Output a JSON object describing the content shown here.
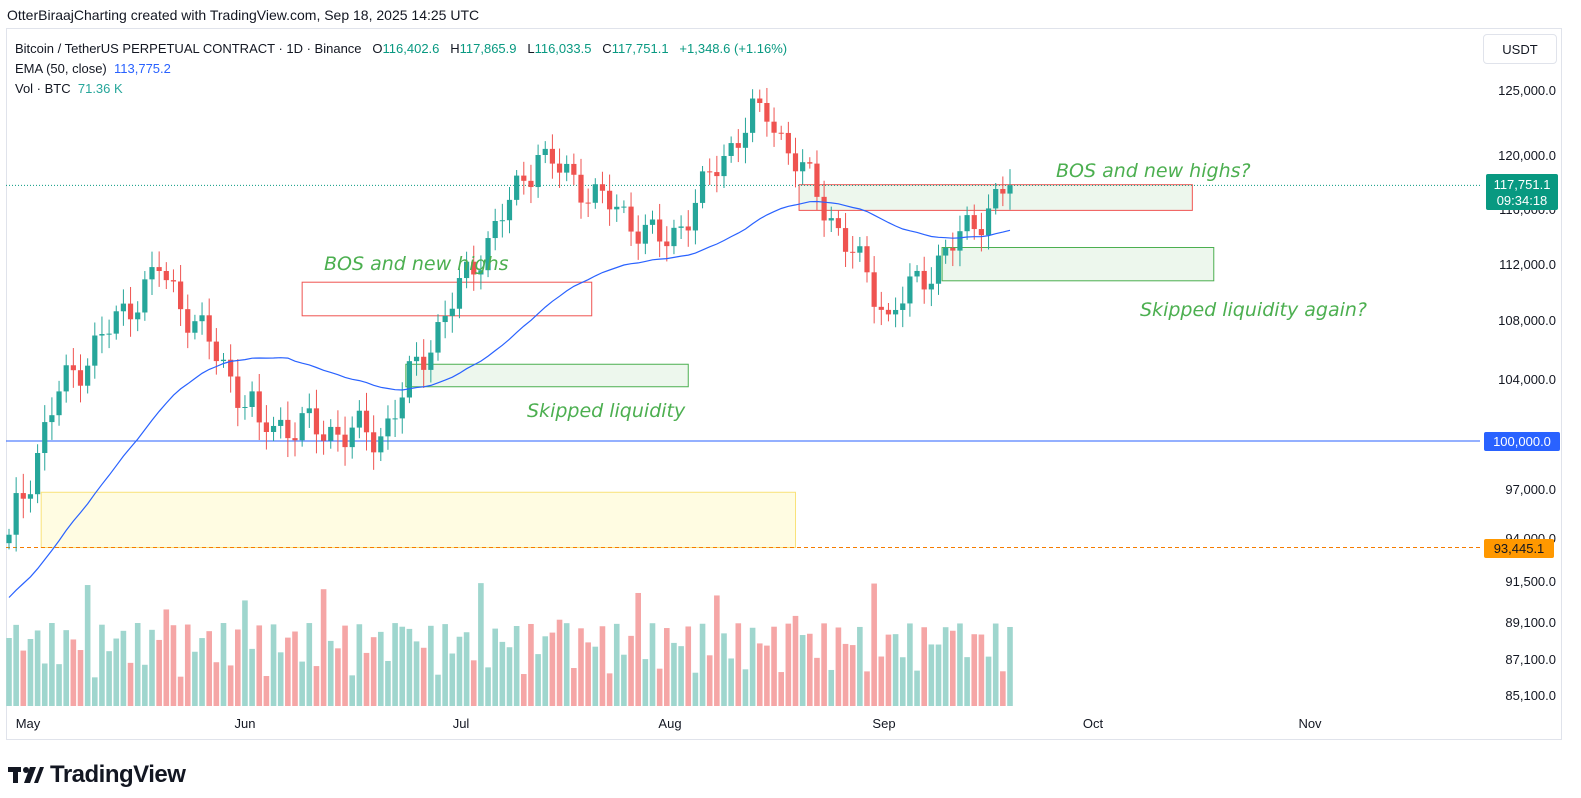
{
  "header": {
    "attribution": "OtterBiraajCharting created with TradingView.com, Sep 18, 2025 14:25 UTC"
  },
  "legend": {
    "symbol": "Bitcoin / TetherUS PERPETUAL CONTRACT · 1D · Binance",
    "o_label": "O",
    "o": "116,402.6",
    "h_label": "H",
    "h": "117,865.9",
    "l_label": "L",
    "l": "116,033.5",
    "c_label": "C",
    "c": "117,751.1",
    "change": "+1,348.6 (+1.16%)",
    "ema_label": "EMA (50, close)",
    "ema_value": "113,775.2",
    "vol_label": "Vol · BTC",
    "vol_value": "71.36 K"
  },
  "currency": "USDT",
  "footer": {
    "brand": "TradingView"
  },
  "colors": {
    "up": "#26a69a",
    "down": "#ef5350",
    "ema": "#2962ff",
    "annotation": "#4caf50",
    "level_line": "#2962ff",
    "dashed_level": "#f57c00",
    "vol_up": "#9fd6ce",
    "vol_down": "#f5a6a6"
  },
  "chart_data": {
    "type": "candlestick",
    "y_axis_labels": [
      "125,000.0",
      "120,000.0",
      "116,000.0",
      "112,000.0",
      "108,000.0",
      "104,000.0",
      "100,000.0",
      "97,000.0",
      "94,000.0",
      "91,500.0",
      "89,100.0",
      "87,100.0",
      "85,100.0"
    ],
    "x_axis_labels": [
      "May",
      "Jun",
      "Jul",
      "Aug",
      "Sep",
      "Oct",
      "Nov"
    ],
    "price_tags": {
      "last_price": "117,751.1",
      "countdown": "09:34:18",
      "level_100k": "100,000.0",
      "dashed_level": "93,445.1"
    },
    "annotations": [
      "BOS and new highs",
      "Skipped liquidity",
      "BOS and new highs?",
      "Skipped liquidity again?"
    ],
    "series": [
      {
        "name": "EMA (50, close)",
        "type": "line"
      },
      {
        "name": "Vol · BTC",
        "type": "bar"
      }
    ],
    "zones": [
      {
        "kind": "red-box",
        "y_range": [
          108300,
          110700
        ]
      },
      {
        "kind": "green-box",
        "y_range": [
          103500,
          105000
        ]
      },
      {
        "kind": "yellow-box",
        "y_range": [
          93445.1,
          96800
        ]
      },
      {
        "kind": "red-box",
        "y_range": [
          115900,
          117800
        ]
      },
      {
        "kind": "green-box",
        "y_range": [
          110800,
          113200
        ]
      }
    ],
    "key_points": [
      {
        "date": "May 1",
        "close": 94200
      },
      {
        "date": "May 8",
        "close": 103200
      },
      {
        "date": "May 22",
        "close": 111500
      },
      {
        "date": "Jun 5",
        "close": 101200
      },
      {
        "date": "Jun 22",
        "close": 100300
      },
      {
        "date": "Jul 14",
        "close": 120000
      },
      {
        "date": "Aug 1",
        "close": 113300
      },
      {
        "date": "Aug 14",
        "close": 124000
      },
      {
        "date": "Sep 1",
        "close": 108400
      },
      {
        "date": "Sep 18",
        "close": 117751.1
      }
    ]
  }
}
